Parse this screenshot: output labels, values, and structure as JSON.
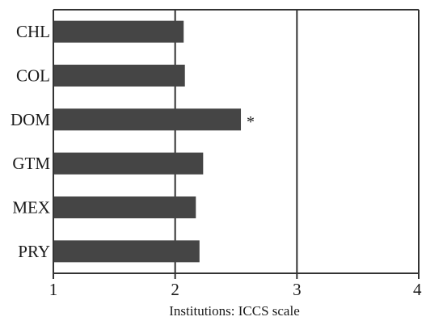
{
  "chart_data": {
    "type": "bar",
    "orientation": "horizontal",
    "title": "",
    "xlabel": "Institutions: ICCS scale",
    "ylabel": "",
    "xlim": [
      1,
      4
    ],
    "xticks": [
      "1",
      "2",
      "3",
      "4"
    ],
    "grid": "vertical lines at 2, 3, 4",
    "bar_color": "#454545",
    "categories": [
      "CHL",
      "COL",
      "DOM",
      "GTM",
      "MEX",
      "PRY"
    ],
    "values": [
      2.07,
      2.08,
      2.54,
      2.23,
      2.17,
      2.2
    ],
    "annotations": [
      {
        "category": "DOM",
        "text": "*"
      }
    ]
  }
}
